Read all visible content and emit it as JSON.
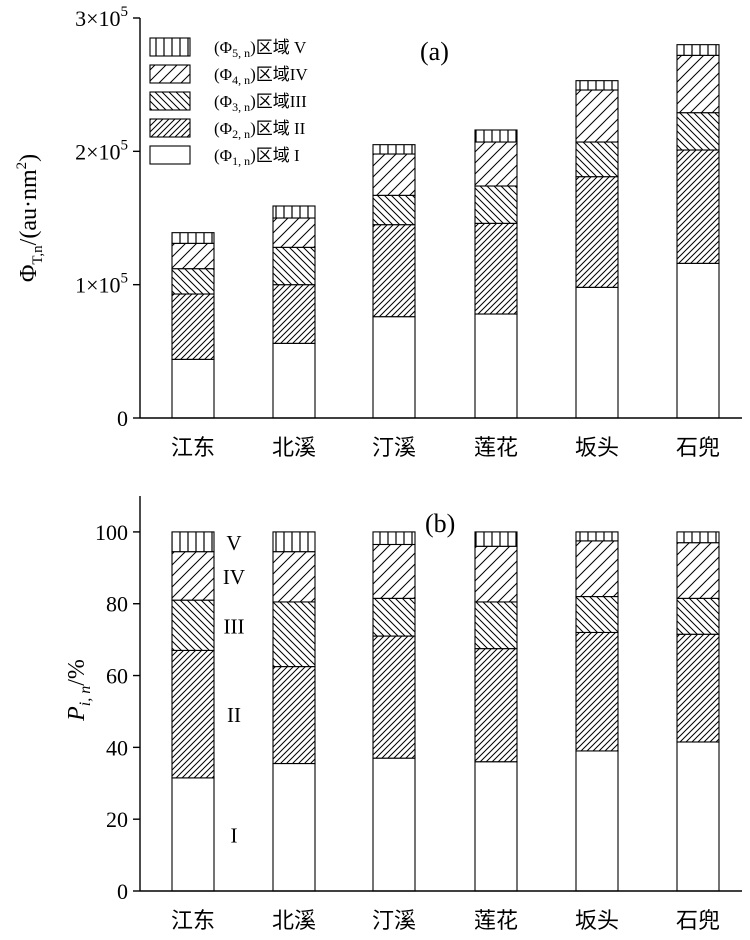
{
  "chart_data": [
    {
      "type": "bar",
      "stacked": true,
      "panel_label": "(a)",
      "ylabel_main": "Φ",
      "ylabel_sub": "T,n",
      "ylabel_rest": "/(au·nm",
      "ylabel_sup": "2",
      "ylabel_close": ")",
      "ylim": [
        0,
        300000
      ],
      "yticks": [
        {
          "value": 0,
          "label": "0"
        },
        {
          "value": 100000,
          "label": "1×10",
          "sup": "5"
        },
        {
          "value": 200000,
          "label": "2×10",
          "sup": "5"
        },
        {
          "value": 300000,
          "label": "3×10",
          "sup": "5"
        }
      ],
      "categories": [
        "江东",
        "北溪",
        "汀溪",
        "莲花",
        "坂头",
        "石兜"
      ],
      "legend_position": "top-left",
      "series": [
        {
          "name": "(Φ1, n)区域 I",
          "label_pre": "(Φ",
          "label_sub": "1, n",
          "label_post": ")区域 I",
          "pattern": "blank",
          "values": [
            44000,
            56000,
            76000,
            78000,
            98000,
            116000
          ]
        },
        {
          "name": "(Φ2, n)区域 II",
          "label_pre": "(Φ",
          "label_sub": "2, n",
          "label_post": ")区域 II",
          "pattern": "dense-diag",
          "values": [
            49000,
            44000,
            69000,
            68000,
            83000,
            85000
          ]
        },
        {
          "name": "(Φ3, n)区域III",
          "label_pre": "(Φ",
          "label_sub": "3, n",
          "label_post": ")区域III",
          "pattern": "back-diag",
          "values": [
            19000,
            28000,
            22000,
            28000,
            26000,
            28000
          ]
        },
        {
          "name": "(Φ4, n)区域IV",
          "label_pre": "(Φ",
          "label_sub": "4, n",
          "label_post": ")区域IV",
          "pattern": "sparse-diag",
          "values": [
            19000,
            22000,
            31000,
            33000,
            39000,
            43000
          ]
        },
        {
          "name": "(Φ5, n)区域 V",
          "label_pre": "(Φ",
          "label_sub": "5, n",
          "label_post": ")区域 V",
          "pattern": "vertical",
          "values": [
            8000,
            9000,
            7000,
            9000,
            7000,
            8000
          ]
        }
      ]
    },
    {
      "type": "bar",
      "stacked": true,
      "panel_label": "(b)",
      "ylabel_main": "P",
      "ylabel_sub": "i, n",
      "ylabel_rest": "/%",
      "ylim": [
        0,
        110
      ],
      "yticks": [
        {
          "value": 0,
          "label": "0"
        },
        {
          "value": 20,
          "label": "20"
        },
        {
          "value": 40,
          "label": "40"
        },
        {
          "value": 60,
          "label": "60"
        },
        {
          "value": 80,
          "label": "80"
        },
        {
          "value": 100,
          "label": "100"
        }
      ],
      "categories": [
        "江东",
        "北溪",
        "汀溪",
        "莲花",
        "坂头",
        "石兜"
      ],
      "region_labels": [
        "I",
        "II",
        "III",
        "IV",
        "V"
      ],
      "series": [
        {
          "name": "I",
          "pattern": "blank",
          "values": [
            31.5,
            35.5,
            37,
            36,
            39,
            41.5
          ]
        },
        {
          "name": "II",
          "pattern": "dense-diag",
          "values": [
            35.5,
            27,
            34,
            31.5,
            33,
            30
          ]
        },
        {
          "name": "III",
          "pattern": "back-diag",
          "values": [
            14,
            18,
            10.5,
            13,
            10,
            10
          ]
        },
        {
          "name": "IV",
          "pattern": "sparse-diag",
          "values": [
            13.5,
            14,
            15,
            15.5,
            15.5,
            15.5
          ]
        },
        {
          "name": "V",
          "pattern": "vertical",
          "values": [
            5.5,
            5.5,
            3.5,
            4,
            2.5,
            3
          ]
        }
      ]
    }
  ]
}
